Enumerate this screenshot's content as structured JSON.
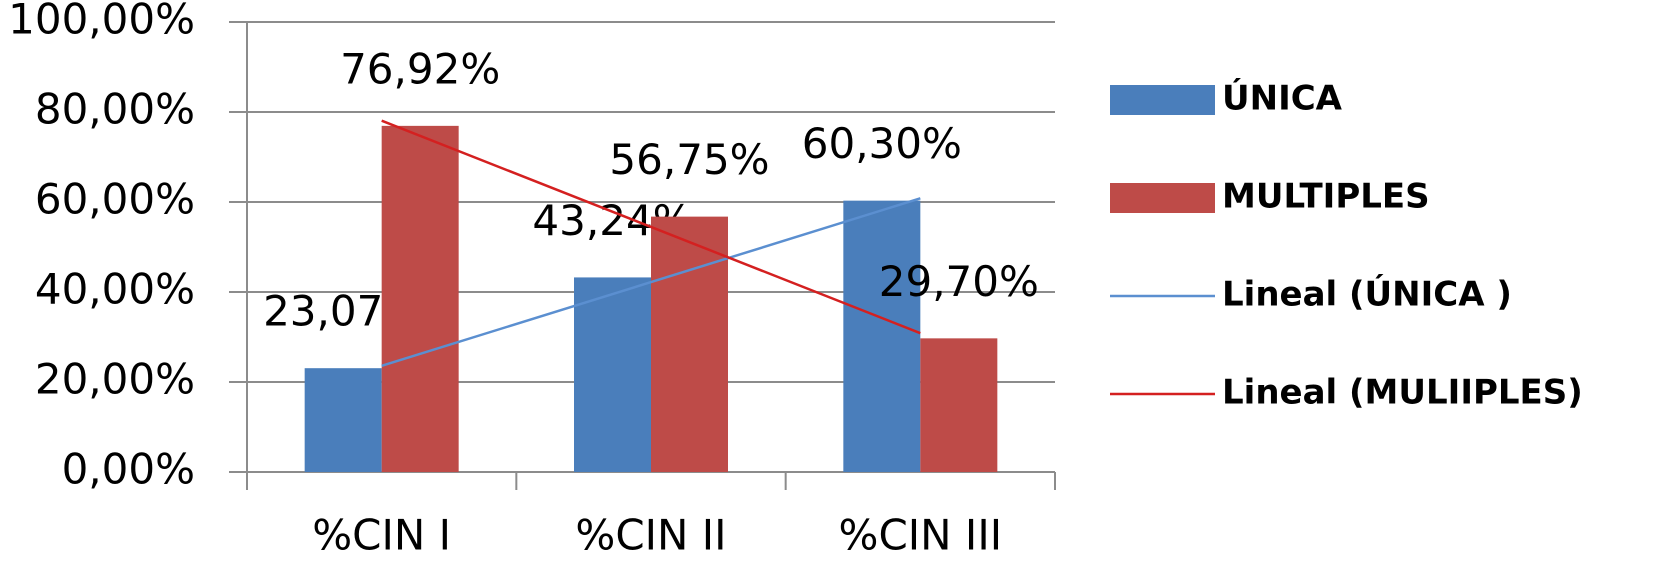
{
  "chart_data": {
    "type": "bar",
    "categories": [
      "%CIN I",
      "%CIN II",
      "%CIN III"
    ],
    "series": [
      {
        "name": "ÚNICA",
        "color": "#4a7ebb",
        "values": [
          23.07,
          43.24,
          60.3
        ],
        "value_labels": [
          "23,07%",
          "43,24%",
          "60,30%"
        ]
      },
      {
        "name": "MULTIPLES",
        "color": "#be4b48",
        "values": [
          76.92,
          56.75,
          29.7
        ],
        "value_labels": [
          "76,92%",
          "56,75%",
          "29,70%"
        ]
      }
    ],
    "trendlines": [
      {
        "name": "Lineal (ÚNICA )",
        "color": "#5b8fd0",
        "values": [
          23.59,
          42.2,
          60.82
        ]
      },
      {
        "name": "Lineal (MULIIPLES)",
        "color": "#d42020",
        "values": [
          78.07,
          54.46,
          30.85
        ]
      }
    ],
    "ylim": [
      0,
      100
    ],
    "yticks": [
      {
        "value": 0,
        "label": "0,00%"
      },
      {
        "value": 20,
        "label": "20,00%"
      },
      {
        "value": 40,
        "label": "40,00%"
      },
      {
        "value": 60,
        "label": "60,00%"
      },
      {
        "value": 80,
        "label": "80,00%"
      },
      {
        "value": 100,
        "label": "100,00%"
      }
    ],
    "grid": true,
    "legend": "right"
  }
}
